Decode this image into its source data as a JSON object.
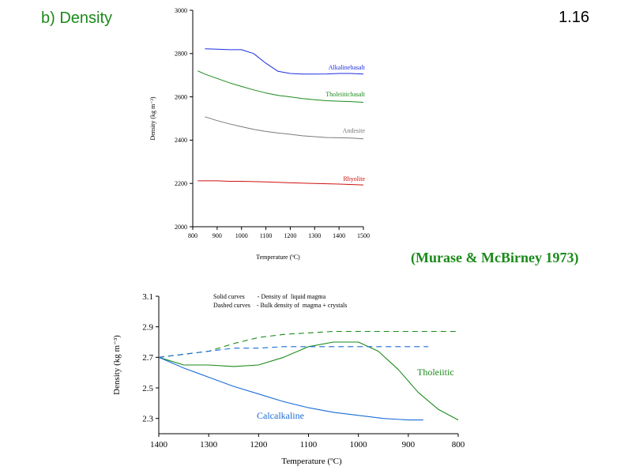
{
  "slide": {
    "heading": "b) Density",
    "number": "1.16",
    "citation": "(Murase & McBirney 1973)"
  },
  "chart_data": [
    {
      "type": "line",
      "xlabel": "Temperature (ºC)",
      "ylabel": "Density (kg m⁻³)",
      "xlim": [
        800,
        1500
      ],
      "ylim": [
        2000,
        3000
      ],
      "xticks": [
        800,
        900,
        1000,
        1100,
        1200,
        1300,
        1400,
        1500
      ],
      "yticks": [
        2000,
        2200,
        2400,
        2600,
        2800,
        3000
      ],
      "grid": false,
      "series": [
        {
          "name": "Alkalinebasalt",
          "color": "#1a2ee0",
          "dashed": false,
          "x": [
            850,
            900,
            950,
            1000,
            1050,
            1100,
            1150,
            1200,
            1250,
            1300,
            1350,
            1400,
            1450,
            1500
          ],
          "y": [
            2822,
            2820,
            2818,
            2818,
            2800,
            2755,
            2718,
            2708,
            2705,
            2705,
            2706,
            2708,
            2708,
            2705
          ]
        },
        {
          "name": "Tholeiiticbasalt",
          "color": "#1a8a1a",
          "dashed": false,
          "x": [
            820,
            850,
            900,
            950,
            1000,
            1050,
            1100,
            1150,
            1200,
            1250,
            1300,
            1350,
            1400,
            1450,
            1500
          ],
          "y": [
            2720,
            2705,
            2685,
            2665,
            2648,
            2632,
            2618,
            2607,
            2600,
            2592,
            2587,
            2582,
            2580,
            2578,
            2575
          ]
        },
        {
          "name": "Andesite",
          "color": "#7a7a7a",
          "dashed": false,
          "x": [
            850,
            900,
            950,
            1000,
            1050,
            1100,
            1150,
            1200,
            1250,
            1300,
            1350,
            1400,
            1450,
            1500
          ],
          "y": [
            2508,
            2490,
            2475,
            2462,
            2450,
            2440,
            2433,
            2427,
            2420,
            2416,
            2412,
            2411,
            2410,
            2406
          ]
        },
        {
          "name": "Rhyolite",
          "color": "#d01010",
          "dashed": false,
          "x": [
            820,
            900,
            950,
            1000,
            1100,
            1200,
            1300,
            1400,
            1500
          ],
          "y": [
            2212,
            2212,
            2210,
            2210,
            2207,
            2203,
            2200,
            2197,
            2193
          ]
        }
      ]
    },
    {
      "type": "line",
      "xlabel": "Temperature (ºC)",
      "ylabel": "Density (kg m⁻³)",
      "xlim": [
        1400,
        800
      ],
      "ylim": [
        2.2,
        3.1
      ],
      "xticks": [
        1400,
        1300,
        1200,
        1100,
        1000,
        900,
        800
      ],
      "yticks": [
        2.3,
        2.5,
        2.7,
        2.9,
        3.1
      ],
      "grid": false,
      "legend_lines": [
        "Solid curves        - Density of  liquid magma",
        "Dashed curves    - Bulk density of  magma + crystals"
      ],
      "series": [
        {
          "name": "Tholeiitic",
          "color": "#1a8a1a",
          "dashed": false,
          "x": [
            1400,
            1350,
            1300,
            1250,
            1200,
            1150,
            1100,
            1050,
            1000,
            960,
            920,
            880,
            840,
            800
          ],
          "y": [
            2.7,
            2.65,
            2.65,
            2.64,
            2.65,
            2.7,
            2.77,
            2.8,
            2.8,
            2.74,
            2.62,
            2.47,
            2.36,
            2.29
          ]
        },
        {
          "name": "",
          "color": "#1a8a1a",
          "dashed": true,
          "x": [
            1400,
            1300,
            1250,
            1200,
            1150,
            1100,
            1050,
            1000,
            900,
            800
          ],
          "y": [
            2.7,
            2.74,
            2.79,
            2.83,
            2.85,
            2.86,
            2.87,
            2.87,
            2.87,
            2.87
          ]
        },
        {
          "name": "Calcalkaline",
          "color": "#1a6cd8",
          "dashed": false,
          "x": [
            1400,
            1350,
            1300,
            1250,
            1200,
            1150,
            1100,
            1050,
            1000,
            950,
            900,
            870
          ],
          "y": [
            2.7,
            2.63,
            2.57,
            2.51,
            2.46,
            2.41,
            2.37,
            2.34,
            2.32,
            2.3,
            2.29,
            2.29
          ]
        },
        {
          "name": "",
          "color": "#1a6cd8",
          "dashed": true,
          "x": [
            1400,
            1300,
            1250,
            1200,
            1150,
            1100,
            1050,
            1000,
            950,
            900,
            860
          ],
          "y": [
            2.7,
            2.74,
            2.76,
            2.76,
            2.77,
            2.77,
            2.77,
            2.77,
            2.77,
            2.77,
            2.77
          ]
        }
      ]
    }
  ]
}
